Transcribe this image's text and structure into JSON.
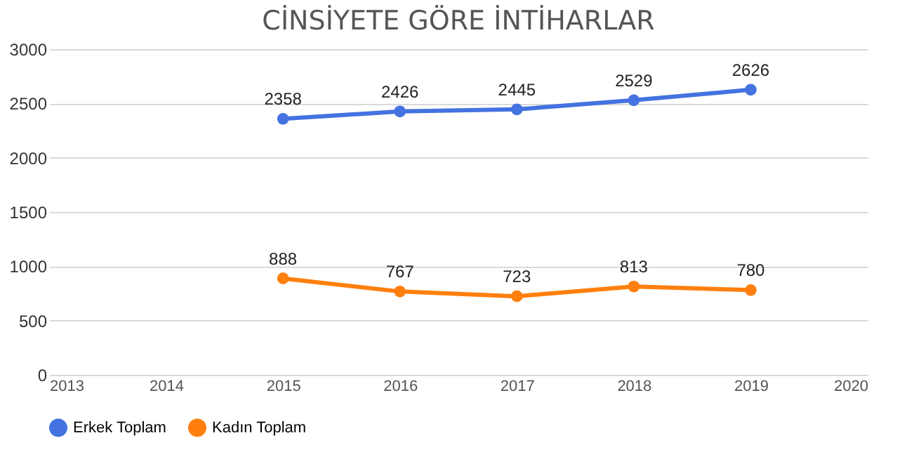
{
  "chart_data": {
    "type": "line",
    "title": "CİNSİYETE GÖRE İNTİHARLAR",
    "x": [
      2015,
      2016,
      2017,
      2018,
      2019
    ],
    "series": [
      {
        "name": "Erkek Toplam",
        "color": "#4472e0",
        "values": [
          2358,
          2426,
          2445,
          2529,
          2626
        ]
      },
      {
        "name": "Kadın Toplam",
        "color": "#ff7f0e",
        "values": [
          888,
          767,
          723,
          813,
          780
        ]
      }
    ],
    "xlim": [
      2013,
      2020
    ],
    "xticks": [
      2013,
      2014,
      2015,
      2016,
      2017,
      2018,
      2019,
      2020
    ],
    "ylim": [
      0,
      3000
    ],
    "yticks": [
      0,
      500,
      1000,
      1500,
      2000,
      2500,
      3000
    ],
    "grid": "y",
    "legend": "bottom",
    "marker": "circle",
    "line_style": "solid",
    "data_labels": true
  }
}
